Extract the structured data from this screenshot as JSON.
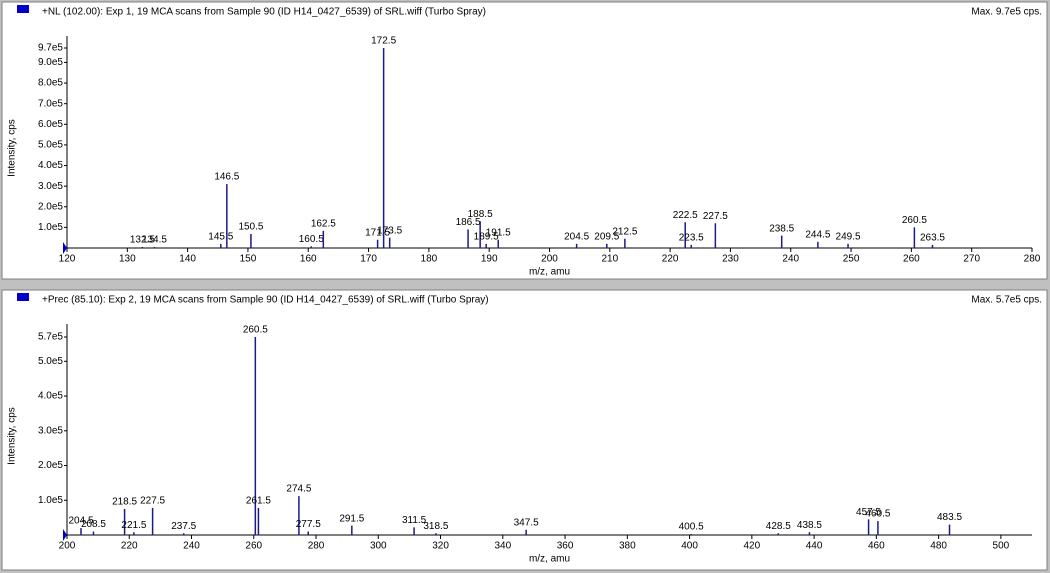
{
  "chart_data": [
    {
      "type": "bar",
      "title": "+NL (102.00): Exp 1, 19 MCA scans from Sample 90 (ID H14_0427_6539) of SRL.wiff (Turbo Spray)",
      "annotation": "Max. 9.7e5 cps.",
      "xlabel": "m/z, amu",
      "ylabel": "Intensity, cps",
      "color": "#1a1a8c",
      "x": [
        132.5,
        134.5,
        145.5,
        146.5,
        150.5,
        160.5,
        162.5,
        171.5,
        172.5,
        173.5,
        186.5,
        188.5,
        189.5,
        191.5,
        204.5,
        209.5,
        212.5,
        222.5,
        223.5,
        227.5,
        238.5,
        244.5,
        249.5,
        260.5,
        263.5
      ],
      "values": [
        5000,
        5000,
        20000,
        310000,
        68000,
        8000,
        83000,
        40000,
        970000,
        50000,
        90000,
        130000,
        20000,
        40000,
        20000,
        20000,
        45000,
        125000,
        15000,
        120000,
        60000,
        30000,
        20000,
        100000,
        15000
      ],
      "xlim": [
        120,
        280
      ],
      "xticks": [
        120,
        130,
        140,
        150,
        160,
        170,
        180,
        190,
        200,
        210,
        220,
        230,
        240,
        250,
        260,
        270,
        280
      ],
      "ylim": [
        0,
        970000
      ],
      "yticks": [
        {
          "value": 100000,
          "label": "1.0e5"
        },
        {
          "value": 200000,
          "label": "2.0e5"
        },
        {
          "value": 300000,
          "label": "3.0e5"
        },
        {
          "value": 400000,
          "label": "4.0e5"
        },
        {
          "value": 500000,
          "label": "5.0e5"
        },
        {
          "value": 600000,
          "label": "6.0e5"
        },
        {
          "value": 700000,
          "label": "7.0e5"
        },
        {
          "value": 800000,
          "label": "8.0e5"
        },
        {
          "value": 900000,
          "label": "9.0e5"
        },
        {
          "value": 970000,
          "label": "9.7e5"
        }
      ]
    },
    {
      "type": "bar",
      "title": "+Prec (85.10): Exp 2, 19 MCA scans from Sample 90 (ID H14_0427_6539) of SRL.wiff (Turbo Spray)",
      "annotation": "Max. 5.7e5 cps.",
      "xlabel": "m/z, amu",
      "ylabel": "Intensity, cps",
      "color": "#1a1a8c",
      "x": [
        204.5,
        208.5,
        218.5,
        221.5,
        227.5,
        237.5,
        260.5,
        261.5,
        274.5,
        277.5,
        291.5,
        311.5,
        318.5,
        347.5,
        400.5,
        428.5,
        438.5,
        457.5,
        460.5,
        483.5
      ],
      "values": [
        20000,
        10000,
        75000,
        8000,
        78000,
        5000,
        570000,
        78000,
        112000,
        10000,
        27000,
        22000,
        5000,
        15000,
        3000,
        5000,
        8000,
        45000,
        40000,
        30000
      ],
      "xlim": [
        200,
        510
      ],
      "xticks": [
        200,
        220,
        240,
        260,
        280,
        300,
        320,
        340,
        360,
        380,
        400,
        420,
        440,
        460,
        480,
        500
      ],
      "ylim": [
        0,
        570000
      ],
      "yticks": [
        {
          "value": 100000,
          "label": "1.0e5"
        },
        {
          "value": 200000,
          "label": "2.0e5"
        },
        {
          "value": 300000,
          "label": "3.0e5"
        },
        {
          "value": 400000,
          "label": "4.0e5"
        },
        {
          "value": 500000,
          "label": "5.0e5"
        },
        {
          "value": 570000,
          "label": "5.7e5"
        }
      ]
    }
  ]
}
